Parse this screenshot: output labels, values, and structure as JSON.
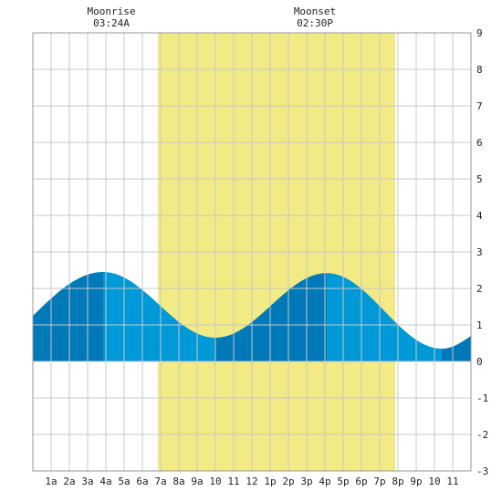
{
  "chart_data": {
    "type": "area",
    "title": "",
    "xlabel": "",
    "ylabel": "",
    "xlim": [
      0,
      24
    ],
    "ylim": [
      -3,
      9
    ],
    "y_ticks": [
      -3,
      -2,
      -1,
      0,
      1,
      2,
      3,
      4,
      5,
      6,
      7,
      8,
      9
    ],
    "x_ticks": [
      {
        "x": 1,
        "label": "1a"
      },
      {
        "x": 2,
        "label": "2a"
      },
      {
        "x": 3,
        "label": "3a"
      },
      {
        "x": 4,
        "label": "4a"
      },
      {
        "x": 5,
        "label": "5a"
      },
      {
        "x": 6,
        "label": "6a"
      },
      {
        "x": 7,
        "label": "7a"
      },
      {
        "x": 8,
        "label": "8a"
      },
      {
        "x": 9,
        "label": "9a"
      },
      {
        "x": 10,
        "label": "10"
      },
      {
        "x": 11,
        "label": "11"
      },
      {
        "x": 12,
        "label": "12"
      },
      {
        "x": 13,
        "label": "1p"
      },
      {
        "x": 14,
        "label": "2p"
      },
      {
        "x": 15,
        "label": "3p"
      },
      {
        "x": 16,
        "label": "4p"
      },
      {
        "x": 17,
        "label": "5p"
      },
      {
        "x": 18,
        "label": "6p"
      },
      {
        "x": 19,
        "label": "7p"
      },
      {
        "x": 20,
        "label": "8p"
      },
      {
        "x": 21,
        "label": "9p"
      },
      {
        "x": 22,
        "label": "10"
      },
      {
        "x": 23,
        "label": "11"
      }
    ],
    "grid": true,
    "daylight": {
      "start": 6.85,
      "end": 19.85,
      "color": "#f2ea84"
    },
    "tide_colors": {
      "light": "#0099d8",
      "dark": "#0079b8"
    },
    "tide_extrema": [
      {
        "time": 3.85,
        "height": 2.45,
        "kind": "high"
      },
      {
        "time": 10.0,
        "height": 0.65,
        "kind": "low"
      },
      {
        "time": 16.1,
        "height": 2.42,
        "kind": "high"
      },
      {
        "time": 22.4,
        "height": 0.35,
        "kind": "low"
      }
    ],
    "tide_start_height": 1.25,
    "tide_end_height": 0.7,
    "annotations": [
      {
        "x": 4.3,
        "label": "Moonrise",
        "time": "03:24A"
      },
      {
        "x": 15.45,
        "label": "Moonset",
        "time": "02:30P"
      }
    ]
  }
}
